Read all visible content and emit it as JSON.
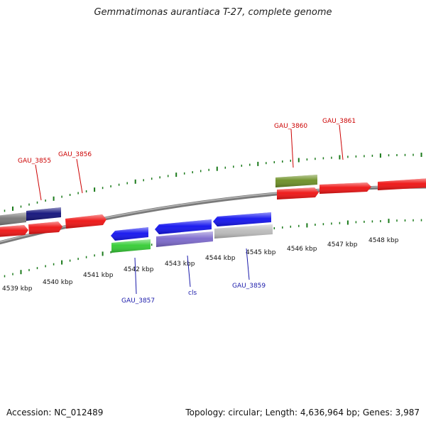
{
  "title": "Gemmatimonas aurantiaca T-27, complete genome",
  "footer": {
    "accession": "Accession: NC_012489",
    "summary": "Topology: circular; Length: 4,636,964 bp; Genes: 3,987"
  },
  "colors": {
    "backbone": "#8a8a8a",
    "forward_label": "#cc0000",
    "reverse_label": "#1a1aaa",
    "tick": "#1a7a1a",
    "cds_red": "#ee1111",
    "cds_blue": "#1111ee",
    "rna_green": "#33cc33",
    "olive": "#6b8e23",
    "navy": "#10107a",
    "gray": "#777777",
    "lavender": "#7b68cc",
    "light_gray": "#bbbbbb"
  },
  "scale_labels": [
    "4539 kbp",
    "4540 kbp",
    "4541 kbp",
    "4542 kbp",
    "4543 kbp",
    "4544 kbp",
    "4545 kbp",
    "4546 kbp",
    "4547 kbp",
    "4548 kbp"
  ],
  "feature_labels": [
    {
      "text": "GAU_3855",
      "strand": "forward"
    },
    {
      "text": "GAU_3856",
      "strand": "forward"
    },
    {
      "text": "GAU_3860",
      "strand": "forward"
    },
    {
      "text": "GAU_3861",
      "strand": "forward"
    },
    {
      "text": "GAU_3857",
      "strand": "reverse"
    },
    {
      "text": "cls",
      "strand": "reverse"
    },
    {
      "text": "GAU_3859",
      "strand": "reverse"
    }
  ]
}
